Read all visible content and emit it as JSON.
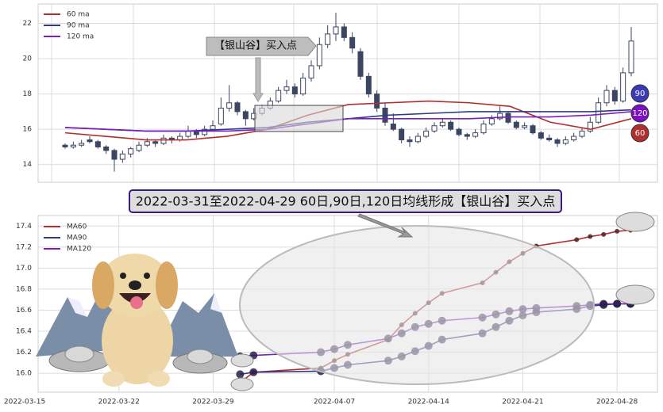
{
  "chart_data": [
    {
      "type": "candlestick",
      "candles": [
        [
          15.1,
          15.2,
          14.9,
          15.0
        ],
        [
          15.0,
          15.3,
          14.9,
          15.1
        ],
        [
          15.1,
          15.4,
          15.0,
          15.2
        ],
        [
          15.4,
          15.6,
          15.2,
          15.3
        ],
        [
          15.3,
          15.4,
          14.9,
          15.0
        ],
        [
          15.0,
          15.1,
          14.6,
          14.8
        ],
        [
          14.8,
          14.9,
          13.6,
          14.3
        ],
        [
          14.3,
          14.8,
          14.1,
          14.6
        ],
        [
          14.6,
          15.0,
          14.4,
          14.9
        ],
        [
          14.8,
          15.3,
          14.7,
          15.1
        ],
        [
          15.1,
          15.5,
          15.0,
          15.3
        ],
        [
          15.3,
          15.4,
          15.0,
          15.2
        ],
        [
          15.2,
          15.7,
          15.1,
          15.5
        ],
        [
          15.5,
          15.6,
          15.2,
          15.4
        ],
        [
          15.4,
          15.8,
          15.3,
          15.6
        ],
        [
          15.6,
          16.2,
          15.5,
          15.9
        ],
        [
          15.9,
          16.0,
          15.5,
          15.7
        ],
        [
          15.7,
          16.2,
          15.6,
          16.0
        ],
        [
          16.0,
          16.5,
          15.9,
          16.2
        ],
        [
          16.3,
          17.8,
          16.2,
          17.2
        ],
        [
          17.2,
          18.5,
          17.0,
          17.5
        ],
        [
          17.5,
          17.6,
          16.8,
          17.0
        ],
        [
          17.0,
          17.1,
          16.2,
          16.6
        ],
        [
          16.6,
          17.2,
          16.5,
          16.9
        ],
        [
          16.9,
          17.4,
          16.8,
          17.2
        ],
        [
          17.2,
          17.8,
          17.1,
          17.6
        ],
        [
          17.6,
          18.4,
          17.5,
          18.2
        ],
        [
          18.2,
          18.8,
          18.0,
          18.4
        ],
        [
          18.4,
          18.6,
          17.8,
          18.0
        ],
        [
          18.0,
          19.2,
          17.9,
          18.9
        ],
        [
          18.9,
          19.9,
          18.7,
          19.6
        ],
        [
          19.6,
          21.2,
          19.4,
          20.8
        ],
        [
          20.8,
          21.9,
          20.6,
          21.4
        ],
        [
          21.4,
          22.6,
          21.0,
          21.8
        ],
        [
          21.8,
          22.0,
          21.0,
          21.2
        ],
        [
          21.2,
          21.5,
          20.3,
          20.6
        ],
        [
          20.4,
          20.6,
          18.8,
          19.0
        ],
        [
          19.0,
          19.2,
          17.8,
          18.0
        ],
        [
          18.0,
          18.2,
          17.0,
          17.2
        ],
        [
          17.2,
          17.5,
          16.2,
          16.4
        ],
        [
          16.3,
          16.9,
          15.9,
          16.0
        ],
        [
          16.0,
          16.1,
          15.2,
          15.4
        ],
        [
          15.4,
          15.6,
          15.0,
          15.3
        ],
        [
          15.3,
          15.8,
          15.2,
          15.6
        ],
        [
          15.6,
          16.1,
          15.5,
          15.9
        ],
        [
          15.9,
          16.4,
          15.8,
          16.2
        ],
        [
          16.2,
          16.6,
          16.1,
          16.4
        ],
        [
          16.4,
          16.5,
          15.9,
          16.0
        ],
        [
          16.0,
          16.1,
          15.6,
          15.7
        ],
        [
          15.7,
          15.8,
          15.4,
          15.6
        ],
        [
          15.6,
          16.0,
          15.5,
          15.8
        ],
        [
          15.8,
          16.5,
          15.7,
          16.3
        ],
        [
          16.3,
          16.8,
          16.2,
          16.6
        ],
        [
          16.6,
          17.3,
          16.5,
          16.9
        ],
        [
          16.9,
          17.0,
          16.3,
          16.4
        ],
        [
          16.4,
          16.5,
          16.0,
          16.1
        ],
        [
          16.1,
          16.4,
          16.0,
          16.2
        ],
        [
          16.2,
          16.3,
          15.7,
          15.8
        ],
        [
          15.8,
          15.9,
          15.4,
          15.5
        ],
        [
          15.5,
          15.7,
          15.3,
          15.4
        ],
        [
          15.4,
          15.5,
          15.0,
          15.2
        ],
        [
          15.2,
          15.6,
          15.1,
          15.4
        ],
        [
          15.4,
          15.8,
          15.3,
          15.6
        ],
        [
          15.6,
          16.1,
          15.5,
          15.9
        ],
        [
          15.9,
          16.7,
          15.8,
          16.4
        ],
        [
          16.4,
          17.8,
          16.3,
          17.5
        ],
        [
          17.5,
          18.5,
          17.3,
          18.2
        ],
        [
          18.2,
          18.4,
          17.4,
          17.6
        ],
        [
          17.6,
          19.5,
          17.5,
          19.2
        ],
        [
          19.2,
          21.8,
          19.0,
          21.0
        ]
      ],
      "up_color": "#ffffff",
      "down_color": "#3b4660",
      "edge_color": "#3b4660",
      "series": [
        {
          "name": "60 ma",
          "color": "#b22d2d",
          "values": [
            15.8,
            15.6,
            15.4,
            15.4,
            15.6,
            16.0,
            16.8,
            17.4,
            17.5,
            17.6,
            17.5,
            17.3,
            16.4,
            16.0,
            16.6
          ]
        },
        {
          "name": "90 ma",
          "color": "#2e3a87",
          "values": [
            16.1,
            16.0,
            15.9,
            15.9,
            16.0,
            16.1,
            16.4,
            16.6,
            16.8,
            16.9,
            17.0,
            17.0,
            17.0,
            17.0,
            17.1
          ]
        },
        {
          "name": "120 ma",
          "color": "#7a1fb8",
          "values": [
            16.1,
            16.0,
            15.9,
            15.9,
            15.9,
            16.0,
            16.3,
            16.6,
            16.6,
            16.6,
            16.6,
            16.7,
            16.7,
            16.8,
            17.0
          ]
        }
      ],
      "ylim": [
        13,
        23.1
      ],
      "yticks": [
        14,
        16,
        18,
        20,
        22
      ],
      "grid": true,
      "annotation": "【银山谷】买入点",
      "end_labels": [
        {
          "text": "90",
          "color": "#3b3bb8"
        },
        {
          "text": "120",
          "color": "#7a10c0"
        },
        {
          "text": "60",
          "color": "#b03030"
        }
      ]
    },
    {
      "type": "line",
      "title": "2022-03-31至2022-04-29 60日,90日,120日均线形成【银山谷】买入点",
      "x": [
        "2022-03-31",
        "2022-04-01",
        "2022-04-06",
        "2022-04-07",
        "2022-04-08",
        "2022-04-11",
        "2022-04-12",
        "2022-04-13",
        "2022-04-14",
        "2022-04-15",
        "2022-04-18",
        "2022-04-19",
        "2022-04-20",
        "2022-04-21",
        "2022-04-22",
        "2022-04-25",
        "2022-04-26",
        "2022-04-27",
        "2022-04-28",
        "2022-04-29"
      ],
      "series": [
        {
          "name": "MA60",
          "color": "#b22d2d",
          "values": [
            15.91,
            16.01,
            16.05,
            16.12,
            16.18,
            16.32,
            16.46,
            16.57,
            16.67,
            16.76,
            16.86,
            16.96,
            17.06,
            17.14,
            17.21,
            17.27,
            17.3,
            17.32,
            17.35,
            17.36
          ]
        },
        {
          "name": "MA90",
          "color": "#2e3a87",
          "values": [
            15.99,
            16.01,
            16.02,
            16.05,
            16.08,
            16.12,
            16.16,
            16.21,
            16.26,
            16.32,
            16.38,
            16.44,
            16.5,
            16.55,
            16.58,
            16.61,
            16.64,
            16.65,
            16.66,
            16.66
          ]
        },
        {
          "name": "MA120",
          "color": "#7a1fb8",
          "values": [
            16.16,
            16.17,
            16.2,
            16.23,
            16.27,
            16.33,
            16.38,
            16.44,
            16.47,
            16.5,
            16.53,
            16.56,
            16.59,
            16.61,
            16.62,
            16.64,
            16.65,
            16.66,
            16.66,
            16.66
          ]
        }
      ],
      "xlim": [
        "2022-03-16",
        "2022-05-01"
      ],
      "xticks": [
        "2022-03-15",
        "2022-03-22",
        "2022-03-29",
        "2022-04-07",
        "2022-04-14",
        "2022-04-21",
        "2022-04-28"
      ],
      "ylim": [
        15.82,
        17.5
      ],
      "yticks": [
        {
          "value": 16,
          "label": "16.0"
        },
        16.2,
        16.4,
        16.6,
        16.8,
        {
          "value": 17,
          "label": "17.0"
        },
        17.2,
        17.4
      ],
      "grid": true
    }
  ]
}
